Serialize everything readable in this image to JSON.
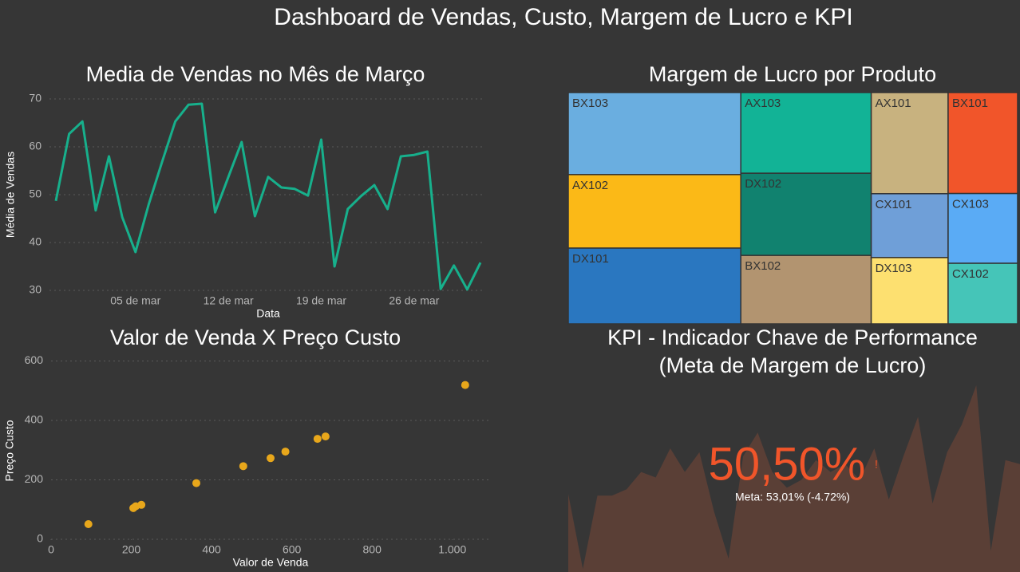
{
  "title": "Dashboard de Vendas, Custo, Margem de Lucro e KPI",
  "chart_data": [
    {
      "type": "line",
      "title": "Media de Vendas no Mês de Março",
      "x_label": "Data",
      "y_label": "Média de Vendas",
      "categories": [
        null,
        null,
        null,
        null,
        null,
        null,
        "05 de mar",
        null,
        null,
        null,
        null,
        null,
        null,
        "12 de mar",
        null,
        null,
        null,
        null,
        null,
        null,
        "19 de mar",
        null,
        null,
        null,
        null,
        null,
        null,
        "26 de mar",
        null,
        null,
        null,
        null,
        null
      ],
      "series": [
        {
          "name": "Média de Vendas",
          "color": "#17b08c",
          "values": [
            48.7,
            62.7,
            65.3,
            46.7,
            58,
            45.3,
            38,
            48,
            56.8,
            65.3,
            68.8,
            69,
            46.3,
            53.7,
            61,
            45.5,
            53.7,
            51.5,
            51.2,
            49.8,
            61.5,
            35,
            47,
            49.7,
            52,
            47,
            58,
            58.3,
            59,
            30.3,
            35.2,
            30.2,
            35.8
          ]
        }
      ],
      "ylim": [
        28,
        72
      ],
      "yticks": [
        30,
        40,
        50,
        60,
        70
      ],
      "grid": true
    },
    {
      "type": "scatter",
      "title": "Valor de Venda X Preço Custo",
      "x_label": "Valor de Venda",
      "y_label": "Preço Custo",
      "series": [
        {
          "name": "Preço Custo",
          "color": "#e8a71b",
          "x": [
            93,
            205,
            211,
            225,
            362,
            479,
            547,
            584,
            664,
            684,
            1032
          ],
          "values": [
            51,
            105,
            111,
            116,
            189,
            246,
            273,
            295,
            338,
            346,
            519
          ]
        }
      ],
      "xlim": [
        0,
        1090
      ],
      "xticks": [
        0,
        200,
        400,
        600,
        800,
        {
          "value": 1000,
          "label": "1.000"
        }
      ],
      "ylim": [
        0,
        620
      ],
      "yticks": [
        0,
        200,
        400,
        600
      ],
      "grid": true
    },
    {
      "type": "treemap",
      "title": "Margem de Lucro por Produto",
      "categories": [
        "BX103",
        "AX102",
        "DX101",
        "AX103",
        "DX102",
        "BX102",
        "AX101",
        "CX101",
        "DX103",
        "BX101",
        "CX103",
        "CX102"
      ],
      "values": [
        222,
        199,
        205,
        165,
        168,
        140,
        122,
        77,
        80,
        110,
        76,
        66
      ],
      "colors": [
        "#6aaee0",
        "#fbb917",
        "#2a77c0",
        "#12b396",
        "#11826f",
        "#b29470",
        "#c8b27f",
        "#6f9fd8",
        "#fde070",
        "#f1552a",
        "#5aabf5",
        "#45c5b8"
      ]
    },
    {
      "type": "kpi",
      "title": [
        "KPI - Indicador Chave de Performance",
        "(Meta de Margem de Lucro)"
      ],
      "value": 50.5,
      "value_label": "50,50%",
      "indicator": "!",
      "goal_text": "Meta: 53,01% (-4.72%)",
      "color": "#f1552a",
      "trend_color": "#5a3f36",
      "trend": [
        99,
        4,
        97,
        97,
        105,
        127,
        120,
        157,
        127,
        152,
        77,
        17,
        147,
        177,
        127,
        107,
        117,
        142,
        127,
        137,
        117,
        157,
        92,
        147,
        197,
        87,
        152,
        187,
        237,
        27,
        142,
        137
      ],
      "trend_ylim": [
        0,
        240
      ]
    }
  ]
}
